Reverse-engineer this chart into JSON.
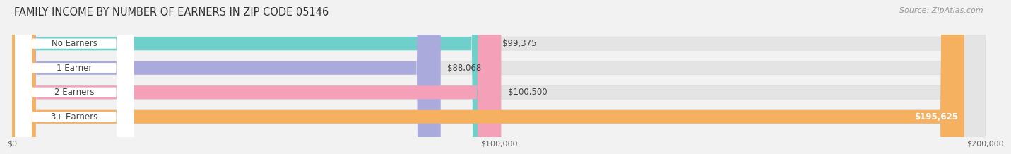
{
  "title": "FAMILY INCOME BY NUMBER OF EARNERS IN ZIP CODE 05146",
  "source": "Source: ZipAtlas.com",
  "categories": [
    "No Earners",
    "1 Earner",
    "2 Earners",
    "3+ Earners"
  ],
  "values": [
    99375,
    88068,
    100500,
    195625
  ],
  "bar_colors": [
    "#6ECFCB",
    "#AAAADD",
    "#F4A0B8",
    "#F5B060"
  ],
  "label_colors": [
    "#333333",
    "#333333",
    "#333333",
    "#ffffff"
  ],
  "value_labels": [
    "$99,375",
    "$88,068",
    "$100,500",
    "$195,625"
  ],
  "xmax": 200000,
  "xtick_labels": [
    "$0",
    "$100,000",
    "$200,000"
  ],
  "bg_color": "#f2f2f2",
  "track_color": "#e4e4e4",
  "title_fontsize": 10.5,
  "source_fontsize": 8,
  "bar_fontsize": 8.5,
  "cat_fontsize": 8.5
}
